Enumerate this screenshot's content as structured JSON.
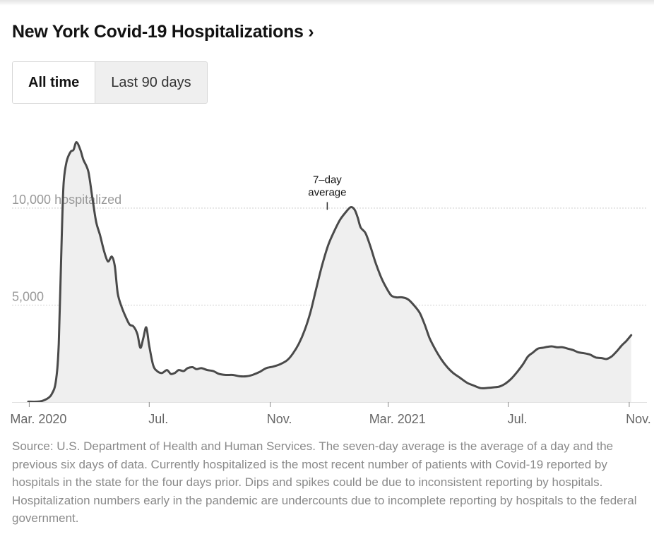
{
  "title": "New York Covid-19 Hospitalizations ›",
  "tabs": [
    {
      "label": "All time",
      "active": true
    },
    {
      "label": "Last 90 days",
      "active": false
    }
  ],
  "chart_data": {
    "type": "area",
    "title": "New York Covid-19 Hospitalizations",
    "series_name": "7-day average",
    "annotation": {
      "line1": "7–day",
      "line2": "average",
      "at_day": 303
    },
    "y_unit_label": "hospitalized",
    "ylim": [
      0,
      14000
    ],
    "yticks": [
      {
        "value": 10000,
        "label": "10,000"
      },
      {
        "value": 5000,
        "label": "5,000"
      }
    ],
    "xlim": [
      -1,
      628
    ],
    "xticks": [
      {
        "day": 0,
        "label": "Mar. 2020"
      },
      {
        "day": 122,
        "label": "Jul."
      },
      {
        "day": 245,
        "label": "Nov."
      },
      {
        "day": 365,
        "label": "Mar. 2021"
      },
      {
        "day": 487,
        "label": "Jul."
      },
      {
        "day": 610,
        "label": "Nov."
      }
    ],
    "points": [
      [
        -1,
        20
      ],
      [
        8,
        20
      ],
      [
        13,
        60
      ],
      [
        19,
        200
      ],
      [
        23,
        420
      ],
      [
        27,
        1050
      ],
      [
        30,
        3000
      ],
      [
        33,
        8500
      ],
      [
        35,
        11300
      ],
      [
        38,
        12400
      ],
      [
        42,
        12900
      ],
      [
        45,
        13000
      ],
      [
        48,
        13400
      ],
      [
        52,
        13000
      ],
      [
        55,
        12500
      ],
      [
        60,
        11900
      ],
      [
        64,
        10600
      ],
      [
        68,
        9300
      ],
      [
        72,
        8600
      ],
      [
        76,
        7800
      ],
      [
        80,
        7250
      ],
      [
        84,
        7500
      ],
      [
        87,
        7000
      ],
      [
        90,
        5600
      ],
      [
        94,
        4900
      ],
      [
        98,
        4400
      ],
      [
        102,
        4000
      ],
      [
        106,
        3900
      ],
      [
        110,
        3500
      ],
      [
        113,
        2800
      ],
      [
        116,
        3300
      ],
      [
        119,
        3850
      ],
      [
        122,
        2900
      ],
      [
        126,
        1900
      ],
      [
        130,
        1600
      ],
      [
        135,
        1500
      ],
      [
        140,
        1650
      ],
      [
        144,
        1450
      ],
      [
        148,
        1500
      ],
      [
        152,
        1650
      ],
      [
        157,
        1600
      ],
      [
        161,
        1750
      ],
      [
        166,
        1800
      ],
      [
        170,
        1700
      ],
      [
        175,
        1750
      ],
      [
        181,
        1650
      ],
      [
        187,
        1600
      ],
      [
        193,
        1450
      ],
      [
        200,
        1400
      ],
      [
        207,
        1400
      ],
      [
        214,
        1330
      ],
      [
        221,
        1330
      ],
      [
        227,
        1400
      ],
      [
        234,
        1550
      ],
      [
        241,
        1750
      ],
      [
        248,
        1830
      ],
      [
        255,
        1950
      ],
      [
        262,
        2150
      ],
      [
        268,
        2500
      ],
      [
        274,
        3000
      ],
      [
        280,
        3700
      ],
      [
        286,
        4650
      ],
      [
        292,
        5900
      ],
      [
        298,
        7100
      ],
      [
        304,
        8100
      ],
      [
        310,
        8800
      ],
      [
        316,
        9400
      ],
      [
        322,
        9800
      ],
      [
        327,
        10050
      ],
      [
        331,
        9900
      ],
      [
        334,
        9500
      ],
      [
        337,
        9000
      ],
      [
        342,
        8700
      ],
      [
        347,
        8000
      ],
      [
        352,
        7200
      ],
      [
        358,
        6400
      ],
      [
        363,
        5900
      ],
      [
        368,
        5500
      ],
      [
        373,
        5400
      ],
      [
        379,
        5400
      ],
      [
        385,
        5300
      ],
      [
        391,
        5000
      ],
      [
        397,
        4600
      ],
      [
        402,
        4000
      ],
      [
        407,
        3300
      ],
      [
        413,
        2700
      ],
      [
        419,
        2200
      ],
      [
        425,
        1800
      ],
      [
        431,
        1500
      ],
      [
        438,
        1250
      ],
      [
        445,
        1000
      ],
      [
        452,
        850
      ],
      [
        459,
        720
      ],
      [
        466,
        730
      ],
      [
        472,
        760
      ],
      [
        478,
        800
      ],
      [
        484,
        950
      ],
      [
        490,
        1200
      ],
      [
        496,
        1550
      ],
      [
        502,
        1950
      ],
      [
        507,
        2350
      ],
      [
        512,
        2550
      ],
      [
        517,
        2750
      ],
      [
        522,
        2800
      ],
      [
        527,
        2850
      ],
      [
        532,
        2870
      ],
      [
        537,
        2820
      ],
      [
        542,
        2830
      ],
      [
        548,
        2750
      ],
      [
        553,
        2680
      ],
      [
        558,
        2570
      ],
      [
        564,
        2520
      ],
      [
        570,
        2450
      ],
      [
        576,
        2300
      ],
      [
        582,
        2270
      ],
      [
        587,
        2220
      ],
      [
        592,
        2350
      ],
      [
        597,
        2600
      ],
      [
        602,
        2900
      ],
      [
        607,
        3150
      ],
      [
        612,
        3450
      ]
    ]
  },
  "source_text": "Source: U.S. Department of Health and Human Services. The seven-day average is the average of a day and the previous six days of data. Currently hospitalized is the most recent number of patients with Covid-19 reported by hospitals in the state for the four days prior. Dips and spikes could be due to inconsistent reporting by hospitals. Hospitalization numbers early in the pandemic are undercounts due to incomplete reporting by hospitals to the federal government."
}
